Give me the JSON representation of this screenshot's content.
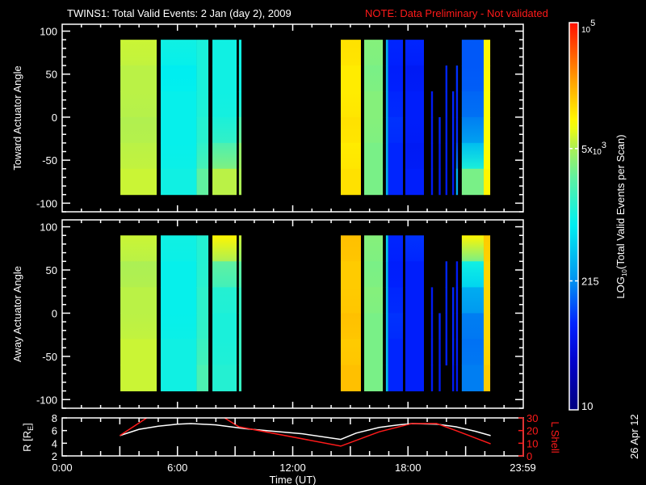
{
  "title": {
    "main": "TWINS1: Total Valid Events:  2 Jan (day   2), 2009",
    "note": "NOTE: Data Preliminary - Not validated"
  },
  "stamp": "26 Apr 12",
  "colors": {
    "background": "#000000",
    "axes": "#ffffff",
    "note": "#ff1a1a",
    "r_line": "#ffffff",
    "l_line": "#ff1a1a"
  },
  "chart_data": [
    {
      "type": "heatmap",
      "name": "toward",
      "ylabel": "Toward Actuator Angle",
      "xlim": [
        0,
        24
      ],
      "ylim": [
        -110,
        108
      ],
      "yticks": [
        100,
        50,
        0,
        -50,
        -100
      ],
      "ytick_labels": [
        "100",
        "50",
        "0",
        "-50",
        "-100"
      ],
      "data_angle_range": [
        -90,
        90
      ],
      "value_units": "log10(counts)",
      "bands": [
        {
          "t0": 3.03,
          "t1": 4.92,
          "profile": [
            3.8,
            3.75,
            3.75,
            3.72,
            3.75,
            3.8
          ]
        },
        {
          "t0": 5.13,
          "t1": 7.0,
          "profile": [
            3.0,
            2.9,
            2.95,
            2.95,
            2.95,
            3.0
          ]
        },
        {
          "t0": 7.0,
          "t1": 7.61,
          "profile": [
            3.05,
            3.05,
            3.05,
            3.1,
            3.15,
            3.4
          ]
        },
        {
          "t0": 7.82,
          "t1": 9.08,
          "profile": [
            3.0,
            3.0,
            3.0,
            3.05,
            3.3,
            3.75
          ]
        },
        {
          "t0": 9.2,
          "t1": 9.33,
          "profile": [
            3.0,
            3.0,
            3.0,
            3.3,
            3.6,
            3.7
          ]
        },
        {
          "t0": 14.5,
          "t1": 15.55,
          "profile": [
            4.1,
            4.05,
            4.05,
            4.1,
            4.05,
            4.1
          ]
        },
        {
          "t0": 15.72,
          "t1": 16.69,
          "profile": [
            3.55,
            3.5,
            3.55,
            3.55,
            3.5,
            3.5
          ]
        },
        {
          "t0": 16.85,
          "t1": 16.97,
          "profile": [
            2.5,
            2.5,
            2.5,
            2.5,
            2.5,
            2.5
          ]
        },
        {
          "t0": 16.97,
          "t1": 17.74,
          "profile": [
            1.9,
            1.85,
            1.9,
            1.95,
            1.9,
            1.9
          ]
        },
        {
          "t0": 17.86,
          "t1": 18.83,
          "profile": [
            1.9,
            1.8,
            1.85,
            1.85,
            1.8,
            1.85
          ]
        },
        {
          "t0": 19.2,
          "t1": 19.3,
          "profile": [
            null,
            null,
            1.8,
            1.8,
            1.8,
            1.8
          ]
        },
        {
          "t0": 19.6,
          "t1": 19.7,
          "profile": [
            null,
            null,
            null,
            1.9,
            1.8,
            1.8
          ]
        },
        {
          "t0": 19.95,
          "t1": 20.05,
          "profile": [
            null,
            1.9,
            1.9,
            1.85,
            1.85,
            1.8
          ]
        },
        {
          "t0": 20.3,
          "t1": 20.4,
          "profile": [
            null,
            null,
            1.9,
            1.9,
            1.9,
            1.8
          ]
        },
        {
          "t0": 20.5,
          "t1": 20.6,
          "profile": [
            null,
            1.95,
            1.9,
            1.9,
            2.0,
            2.5
          ]
        },
        {
          "t0": 20.8,
          "t1": 21.94,
          "profile": [
            2.1,
            2.1,
            2.15,
            2.25,
            2.6,
            3.5
          ]
        },
        {
          "t0": 21.94,
          "t1": 22.28,
          "profile": [
            4.0,
            4.0,
            3.95,
            3.95,
            3.95,
            4.0
          ]
        }
      ]
    },
    {
      "type": "heatmap",
      "name": "away",
      "ylabel": "Away Actuator Angle",
      "xlim": [
        0,
        24
      ],
      "ylim": [
        -110,
        108
      ],
      "yticks": [
        100,
        50,
        0,
        -50,
        -100
      ],
      "ytick_labels": [
        "100",
        "50",
        "0",
        "-50",
        "-100"
      ],
      "data_angle_range": [
        -90,
        90
      ],
      "value_units": "log10(counts)",
      "bands": [
        {
          "t0": 3.03,
          "t1": 4.92,
          "profile": [
            3.8,
            3.7,
            3.75,
            3.75,
            3.8,
            3.8
          ]
        },
        {
          "t0": 5.13,
          "t1": 7.0,
          "profile": [
            3.0,
            2.95,
            2.95,
            2.95,
            3.0,
            3.0
          ]
        },
        {
          "t0": 7.0,
          "t1": 7.61,
          "profile": [
            3.1,
            3.1,
            3.15,
            3.15,
            3.2,
            3.3
          ]
        },
        {
          "t0": 7.82,
          "t1": 9.08,
          "profile": [
            4.0,
            3.4,
            3.1,
            3.05,
            3.05,
            3.1
          ]
        },
        {
          "t0": 9.2,
          "t1": 9.33,
          "profile": [
            3.8,
            3.4,
            3.2,
            3.2,
            3.2,
            3.2
          ]
        },
        {
          "t0": 14.5,
          "t1": 15.55,
          "profile": [
            4.25,
            4.2,
            4.2,
            4.25,
            4.2,
            4.25
          ]
        },
        {
          "t0": 15.72,
          "t1": 16.69,
          "profile": [
            3.55,
            3.5,
            3.55,
            3.5,
            3.5,
            3.5
          ]
        },
        {
          "t0": 16.85,
          "t1": 16.97,
          "profile": [
            2.7,
            2.6,
            2.6,
            2.6,
            2.6,
            2.6
          ]
        },
        {
          "t0": 16.97,
          "t1": 17.74,
          "profile": [
            1.9,
            1.85,
            1.9,
            1.95,
            1.9,
            1.9
          ]
        },
        {
          "t0": 17.86,
          "t1": 18.83,
          "profile": [
            1.95,
            1.85,
            1.85,
            1.85,
            1.85,
            1.85
          ]
        },
        {
          "t0": 19.2,
          "t1": 19.3,
          "profile": [
            null,
            null,
            1.8,
            1.8,
            1.8,
            1.8
          ]
        },
        {
          "t0": 19.6,
          "t1": 19.7,
          "profile": [
            null,
            null,
            null,
            1.9,
            1.8,
            1.8
          ]
        },
        {
          "t0": 19.95,
          "t1": 20.05,
          "profile": [
            null,
            1.9,
            1.9,
            1.85,
            1.85,
            null
          ]
        },
        {
          "t0": 20.3,
          "t1": 20.4,
          "profile": [
            null,
            null,
            1.9,
            1.9,
            1.9,
            1.8
          ]
        },
        {
          "t0": 20.5,
          "t1": 20.6,
          "profile": [
            null,
            1.8,
            1.85,
            1.85,
            1.85,
            1.8
          ]
        },
        {
          "t0": 20.8,
          "t1": 21.94,
          "profile": [
            4.0,
            3.0,
            2.5,
            2.25,
            2.2,
            2.25
          ]
        },
        {
          "t0": 21.94,
          "t1": 22.28,
          "profile": [
            4.2,
            4.15,
            4.15,
            4.15,
            4.15,
            4.2
          ]
        }
      ]
    },
    {
      "type": "line",
      "name": "orbit",
      "ylabel_left": "R [R",
      "ylabel_left_sub": "E",
      "ylabel_left_close": "]",
      "ylabel_right": "L Shell",
      "xlabel": "Time (UT)",
      "xlim": [
        0,
        24
      ],
      "xtick_labels": [
        "0:00",
        "6:00",
        "12:00",
        "18:00",
        "23:59"
      ],
      "xticks": [
        0,
        6,
        12,
        18,
        23.98
      ],
      "ylim_left": [
        2,
        8
      ],
      "yticks_left": [
        "2",
        "4",
        "6",
        "8"
      ],
      "ylim_right": [
        0,
        30
      ],
      "yticks_right": [
        "0",
        "10",
        "20",
        "30"
      ],
      "series": [
        {
          "name": "R",
          "axis": "left",
          "x": [
            3.0,
            4.0,
            5.0,
            6.0,
            6.7,
            8.0,
            9.5,
            11.0,
            12.5,
            14.5,
            15.3,
            16.5,
            17.5,
            18.2,
            19.5,
            20.5,
            21.5,
            22.3
          ],
          "y": [
            5.2,
            6.2,
            6.7,
            7.0,
            7.1,
            6.9,
            6.3,
            5.9,
            5.5,
            4.6,
            5.6,
            6.5,
            6.9,
            7.1,
            7.0,
            6.6,
            5.9,
            5.2
          ]
        },
        {
          "name": "L Shell",
          "axis": "right",
          "x": [
            3.0,
            4.4,
            null,
            8.45,
            9.2,
            14.5,
            16.5,
            18.2,
            19.5,
            20.5,
            22.3
          ],
          "y": [
            16,
            30,
            null,
            30,
            23,
            7.7,
            19,
            25.5,
            25.5,
            20,
            9.5
          ]
        }
      ]
    },
    {
      "type": "colorbar",
      "label_main": "LOG",
      "label_sub": "10",
      "label_rest": "(Total Valid Events per Scan)",
      "range_log10": [
        1,
        5
      ],
      "ticks": [
        {
          "value_log10": 5,
          "base": "10",
          "exp": "5",
          "prefix": ""
        },
        {
          "value_log10": 3.699,
          "base": "10",
          "exp": "3",
          "prefix": "5x"
        },
        {
          "value_log10": 2.332,
          "label": "215"
        },
        {
          "value_log10": 1,
          "label": "10"
        }
      ],
      "colormap": [
        "#00007f",
        "#0000c8",
        "#0020ff",
        "#0090f0",
        "#00f0f0",
        "#60f0a0",
        "#b0f050",
        "#ffff00",
        "#ffa000",
        "#ff1000"
      ]
    }
  ]
}
